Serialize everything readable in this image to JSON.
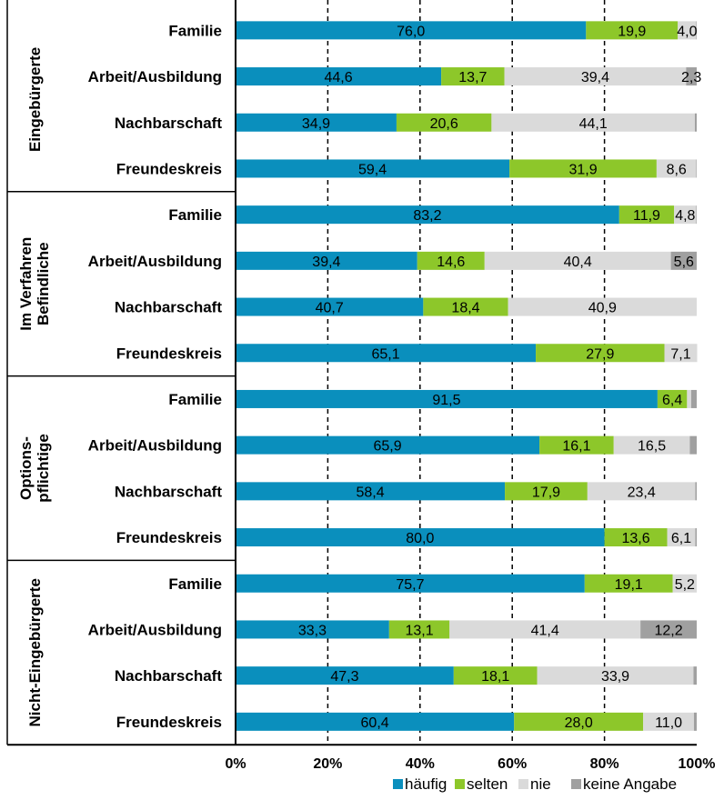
{
  "chart_data": {
    "type": "bar",
    "stacked": true,
    "orientation": "horizontal",
    "xlim": [
      0,
      100
    ],
    "xticks": [
      "0%",
      "20%",
      "40%",
      "60%",
      "80%",
      "100%"
    ],
    "grid": "vertical dashed",
    "legend_position": "bottom",
    "colors": {
      "häufig": "#0a8fbd",
      "selten": "#8dc72a",
      "nie": "#dadada",
      "keine Angabe": "#a0a0a0"
    },
    "legend": [
      "häufig",
      "selten",
      "nie",
      "keine Angabe"
    ],
    "groups": [
      {
        "label": "Eingebürgerte",
        "rows": [
          {
            "category": "Familie",
            "values": [
              76.0,
              19.9,
              4.0,
              0.1
            ],
            "labels": [
              "76,0",
              "19,9",
              "4,0",
              ""
            ]
          },
          {
            "category": "Arbeit/Ausbildung",
            "values": [
              44.6,
              13.7,
              39.4,
              2.3
            ],
            "labels": [
              "44,6",
              "13,7",
              "39,4",
              "2,3"
            ]
          },
          {
            "category": "Nachbarschaft",
            "values": [
              34.9,
              20.6,
              44.1,
              0.4
            ],
            "labels": [
              "34,9",
              "20,6",
              "44,1",
              ""
            ]
          },
          {
            "category": "Freundeskreis",
            "values": [
              59.4,
              31.9,
              8.6,
              0.1
            ],
            "labels": [
              "59,4",
              "31,9",
              "8,6",
              ""
            ]
          }
        ]
      },
      {
        "label": "Im Verfahren Befindliche",
        "label_lines": [
          "Im Verfahren",
          "Befindliche"
        ],
        "rows": [
          {
            "category": "Familie",
            "values": [
              83.2,
              11.9,
              4.8,
              0.1
            ],
            "labels": [
              "83,2",
              "11,9",
              "4,8",
              ""
            ]
          },
          {
            "category": "Arbeit/Ausbildung",
            "values": [
              39.4,
              14.6,
              40.4,
              5.6
            ],
            "labels": [
              "39,4",
              "14,6",
              "40,4",
              "5,6"
            ]
          },
          {
            "category": "Nachbarschaft",
            "values": [
              40.7,
              18.4,
              40.9,
              0.0
            ],
            "labels": [
              "40,7",
              "18,4",
              "40,9",
              ""
            ]
          },
          {
            "category": "Freundeskreis",
            "values": [
              65.1,
              27.9,
              7.1,
              0.0
            ],
            "labels": [
              "65,1",
              "27,9",
              "7,1",
              ""
            ]
          }
        ]
      },
      {
        "label": "Options-pflichtige",
        "label_lines": [
          "Options-",
          "pflichtige"
        ],
        "rows": [
          {
            "category": "Familie",
            "values": [
              91.5,
              6.4,
              0.9,
              1.2
            ],
            "labels": [
              "91,5",
              "6,4",
              "",
              ""
            ]
          },
          {
            "category": "Arbeit/Ausbildung",
            "values": [
              65.9,
              16.1,
              16.5,
              1.5
            ],
            "labels": [
              "65,9",
              "16,1",
              "16,5",
              ""
            ]
          },
          {
            "category": "Nachbarschaft",
            "values": [
              58.4,
              17.9,
              23.4,
              0.3
            ],
            "labels": [
              "58,4",
              "17,9",
              "23,4",
              ""
            ]
          },
          {
            "category": "Freundeskreis",
            "values": [
              80.0,
              13.6,
              6.1,
              0.3
            ],
            "labels": [
              "80,0",
              "13,6",
              "6,1",
              ""
            ]
          }
        ]
      },
      {
        "label": "Nicht-Eingebürgerte",
        "rows": [
          {
            "category": "Familie",
            "values": [
              75.7,
              19.1,
              5.2,
              0.0
            ],
            "labels": [
              "75,7",
              "19,1",
              "5,2",
              ""
            ]
          },
          {
            "category": "Arbeit/Ausbildung",
            "values": [
              33.3,
              13.1,
              41.4,
              12.2
            ],
            "labels": [
              "33,3",
              "13,1",
              "41,4",
              "12,2"
            ]
          },
          {
            "category": "Nachbarschaft",
            "values": [
              47.3,
              18.1,
              33.9,
              0.7
            ],
            "labels": [
              "47,3",
              "18,1",
              "33,9",
              ""
            ]
          },
          {
            "category": "Freundeskreis",
            "values": [
              60.4,
              28.0,
              11.0,
              0.6
            ],
            "labels": [
              "60,4",
              "28,0",
              "11,0",
              ""
            ]
          }
        ]
      }
    ]
  }
}
